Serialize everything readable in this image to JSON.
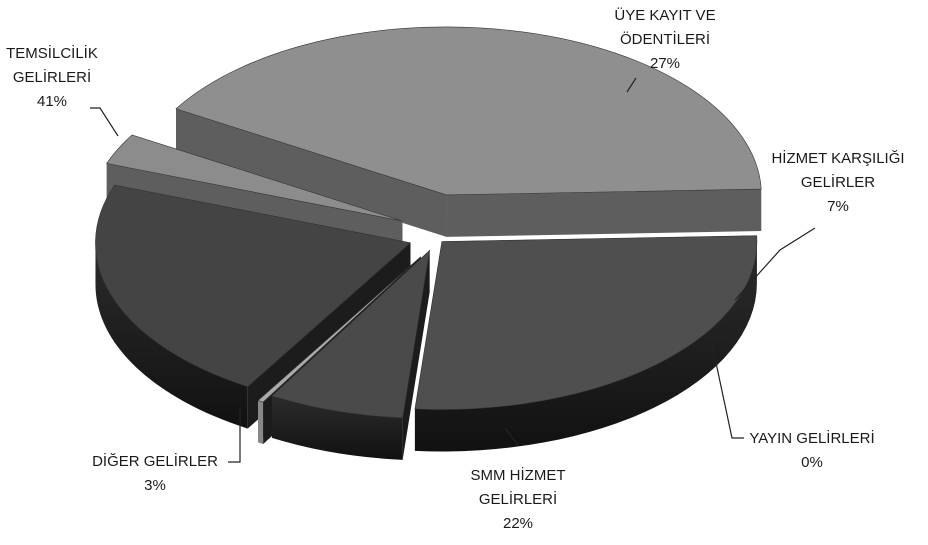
{
  "chart_data": {
    "type": "pie",
    "title": "",
    "slices": [
      {
        "label_lines": [
          "ÜYE  KAYIT VE",
          "ÖDENTİLERİ"
        ],
        "pct_label": "27%",
        "value": 27,
        "color": "#4f4f4f"
      },
      {
        "label_lines": [
          "HİZMET KARŞILIĞI",
          "GELİRLER"
        ],
        "pct_label": "7%",
        "value": 7,
        "color": "#4a4a4a"
      },
      {
        "label_lines": [
          "YAYIN  GELİRLERİ"
        ],
        "pct_label": "0%",
        "value": 0.3,
        "color": "#aaaaaa"
      },
      {
        "label_lines": [
          "SMM HİZMET",
          "GELİRLERİ"
        ],
        "pct_label": "22%",
        "value": 22,
        "color": "#444444"
      },
      {
        "label_lines": [
          "DİĞER GELİRLER"
        ],
        "pct_label": "3%",
        "value": 3,
        "color": "#8c8c8c"
      },
      {
        "label_lines": [
          "TEMSİLCİLİK",
          "GELİRLERİ"
        ],
        "pct_label": "41%",
        "value": 41,
        "color": "#8f8f8f"
      }
    ],
    "legend": "none",
    "style": "3d-exploded"
  }
}
